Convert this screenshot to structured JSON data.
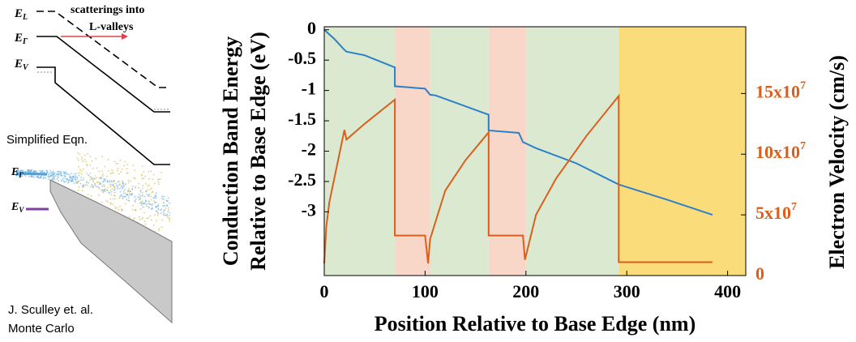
{
  "diagram": {
    "top_labels": [
      {
        "symbol": "E",
        "subscript": "L"
      },
      {
        "symbol": "E",
        "subscript": "Γ"
      },
      {
        "symbol": "E",
        "subscript": "V"
      }
    ],
    "annotation": [
      "scatterings into",
      "L-valleys"
    ],
    "caption_top": "Simplified Eqn.",
    "mc_labels": [
      {
        "symbol": "E",
        "subscript": "Γ"
      },
      {
        "symbol": "E",
        "subscript": "V"
      }
    ],
    "caption_bottom": [
      "J. Sculley et. al.",
      "Monte Carlo"
    ]
  },
  "chart_data": {
    "type": "line",
    "xlabel": "Position Relative to Base Edge (nm)",
    "ylabel": [
      "Conduction Band Energy",
      "Relative to Base Edge (eV)"
    ],
    "y2label": "Electron Velocity (cm/s)",
    "xlim": [
      0,
      418
    ],
    "xticks": [
      0,
      100,
      200,
      300,
      400
    ],
    "ylim": [
      -4.05,
      0.05
    ],
    "yticks": [
      0,
      -0.5,
      -1,
      -1.5,
      -2,
      -2.5,
      -3
    ],
    "y2lim": [
      0,
      205000000
    ],
    "y2ticks": [
      0,
      {
        "value": 50000000,
        "label": "5x10",
        "exponent": "7"
      },
      {
        "value": 100000000,
        "label": "10x10",
        "exponent": "7"
      },
      {
        "value": 150000000,
        "label": "15x10",
        "exponent": "7"
      }
    ],
    "y2color": "#d9601c",
    "regions": [
      {
        "x": [
          0,
          70
        ],
        "color": "#d6e7cb"
      },
      {
        "x": [
          70,
          105
        ],
        "color": "#f7d3c3"
      },
      {
        "x": [
          105,
          163
        ],
        "color": "#d6e7cb"
      },
      {
        "x": [
          163,
          200
        ],
        "color": "#f7d3c3"
      },
      {
        "x": [
          200,
          292
        ],
        "color": "#d6e7cb"
      },
      {
        "x": [
          292,
          418
        ],
        "color": "#fad86c"
      }
    ],
    "series": [
      {
        "color": "#2b80c8",
        "x": [
          0,
          10,
          20,
          22,
          40,
          70,
          70,
          100,
          105,
          110,
          130,
          163,
          163,
          193,
          197,
          210,
          250,
          292,
          340,
          385
        ],
        "values": [
          0,
          -0.15,
          -0.33,
          -0.36,
          -0.42,
          -0.62,
          -0.93,
          -0.97,
          -1.07,
          -1.08,
          -1.2,
          -1.4,
          -1.66,
          -1.7,
          -1.85,
          -1.95,
          -2.2,
          -2.55,
          -2.8,
          -3.05
        ]
      },
      {
        "color": "#d9601c",
        "axis": "y2",
        "x": [
          0,
          2,
          5,
          10,
          20,
          22,
          40,
          70,
          70,
          100,
          103,
          105,
          120,
          140,
          163,
          163,
          197,
          199,
          210,
          230,
          260,
          292,
          292,
          385
        ],
        "values": [
          10000000,
          40000000,
          60000000,
          80000000,
          120000000,
          112000000,
          125000000,
          145000000,
          33000000,
          33000000,
          10000000,
          30000000,
          70000000,
          95000000,
          118000000,
          33000000,
          33000000,
          13000000,
          50000000,
          80000000,
          115000000,
          148000000,
          11000000,
          11000000
        ]
      }
    ]
  }
}
